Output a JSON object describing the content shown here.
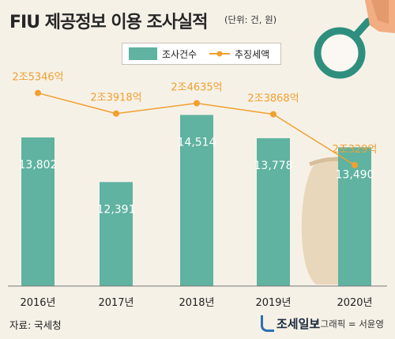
{
  "title": "FIU 제공정보 이용 조사실적",
  "unit_note": "(단위: 건, 원)",
  "legend": {
    "bar_label": "조사건수",
    "line_label": "추징세액"
  },
  "footer": {
    "source": "자료: 국세청",
    "brand": "조세일보",
    "credit": "/ 그래픽 = 서윤영"
  },
  "colors": {
    "bar": "#5fb3a0",
    "line": "#f0a030",
    "background": "#f6f1e7",
    "axis": "#777777"
  },
  "icons": [
    "magnifying-glass-icon",
    "money-bag-icon"
  ],
  "chart_data": {
    "type": "bar",
    "categories": [
      "2016년",
      "2017년",
      "2018년",
      "2019년",
      "2020년"
    ],
    "series": [
      {
        "name": "조사건수",
        "type": "bar",
        "values": [
          13802,
          12391,
          14514,
          13778,
          13490
        ]
      },
      {
        "name": "추징세액",
        "type": "line",
        "values": [
          25346,
          23918,
          24635,
          23868,
          20329
        ]
      }
    ],
    "bar_labels": [
      "13,802",
      "12,391",
      "14,514",
      "13,778",
      "13,490"
    ],
    "line_labels": [
      "2조5346억",
      "2조3918억",
      "2조4635억",
      "2조3868억",
      "2조329억"
    ],
    "title": "FIU 제공정보 이용 조사실적",
    "xlabel": "",
    "ylabel": ""
  }
}
